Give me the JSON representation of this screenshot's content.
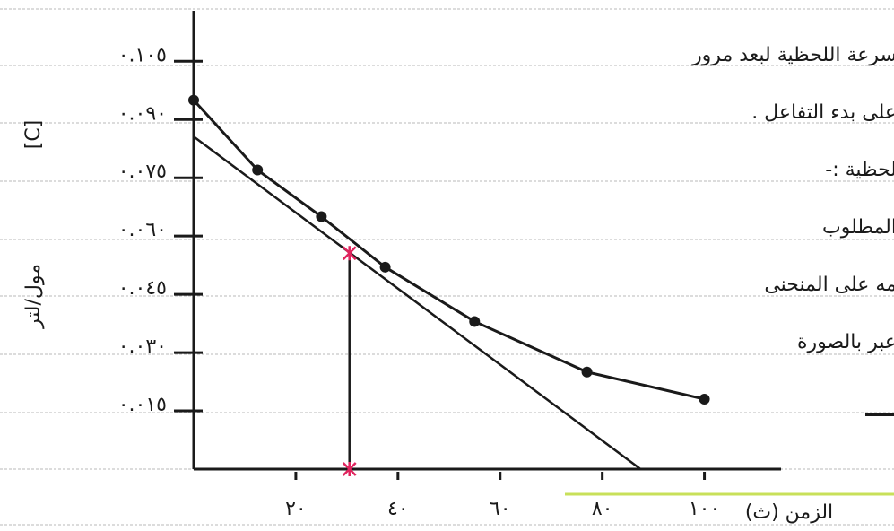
{
  "chart_data": {
    "type": "line",
    "x": [
      0,
      12.5,
      25,
      37.5,
      55,
      77,
      100
    ],
    "values": [
      0.095,
      0.077,
      0.065,
      0.052,
      0.038,
      0.025,
      0.018
    ],
    "color": "#1a1a1a",
    "tangent": {
      "x": [
        0,
        87.5
      ],
      "values": [
        0.0856,
        0
      ]
    },
    "point": {
      "x": 30.5,
      "value": 0.0556,
      "color": "#e0245e"
    },
    "xlim": [
      0,
      115
    ],
    "ylim": [
      0,
      0.118
    ],
    "xticks": [
      {
        "value": 20,
        "label": "٢٠"
      },
      {
        "value": 40,
        "label": "٤٠"
      },
      {
        "value": 60,
        "label": "٦٠"
      },
      {
        "value": 80,
        "label": "٨٠"
      },
      {
        "value": 100,
        "label": "١٠٠"
      }
    ],
    "yticks": [
      {
        "value": 0.015,
        "label": "٠.٠١٥"
      },
      {
        "value": 0.03,
        "label": "٠.٠٣٠"
      },
      {
        "value": 0.045,
        "label": "٠.٠٤٥"
      },
      {
        "value": 0.06,
        "label": "٠.٠٦٠"
      },
      {
        "value": 0.075,
        "label": "٠.٠٧٥"
      },
      {
        "value": 0.09,
        "label": "٠.٠٩٠"
      },
      {
        "value": 0.105,
        "label": "٠.١٠٥"
      }
    ],
    "xlabel": "الزمن (ث)",
    "ylabel": "[C]",
    "yunit": "مول/لتر",
    "annotations": [
      "سرعة اللحظية لبعد مرور",
      "على بدء التفاعل .",
      "لحظية :-",
      "المطلوب",
      "مه على المنحنى",
      "عبر بالصورة"
    ]
  }
}
